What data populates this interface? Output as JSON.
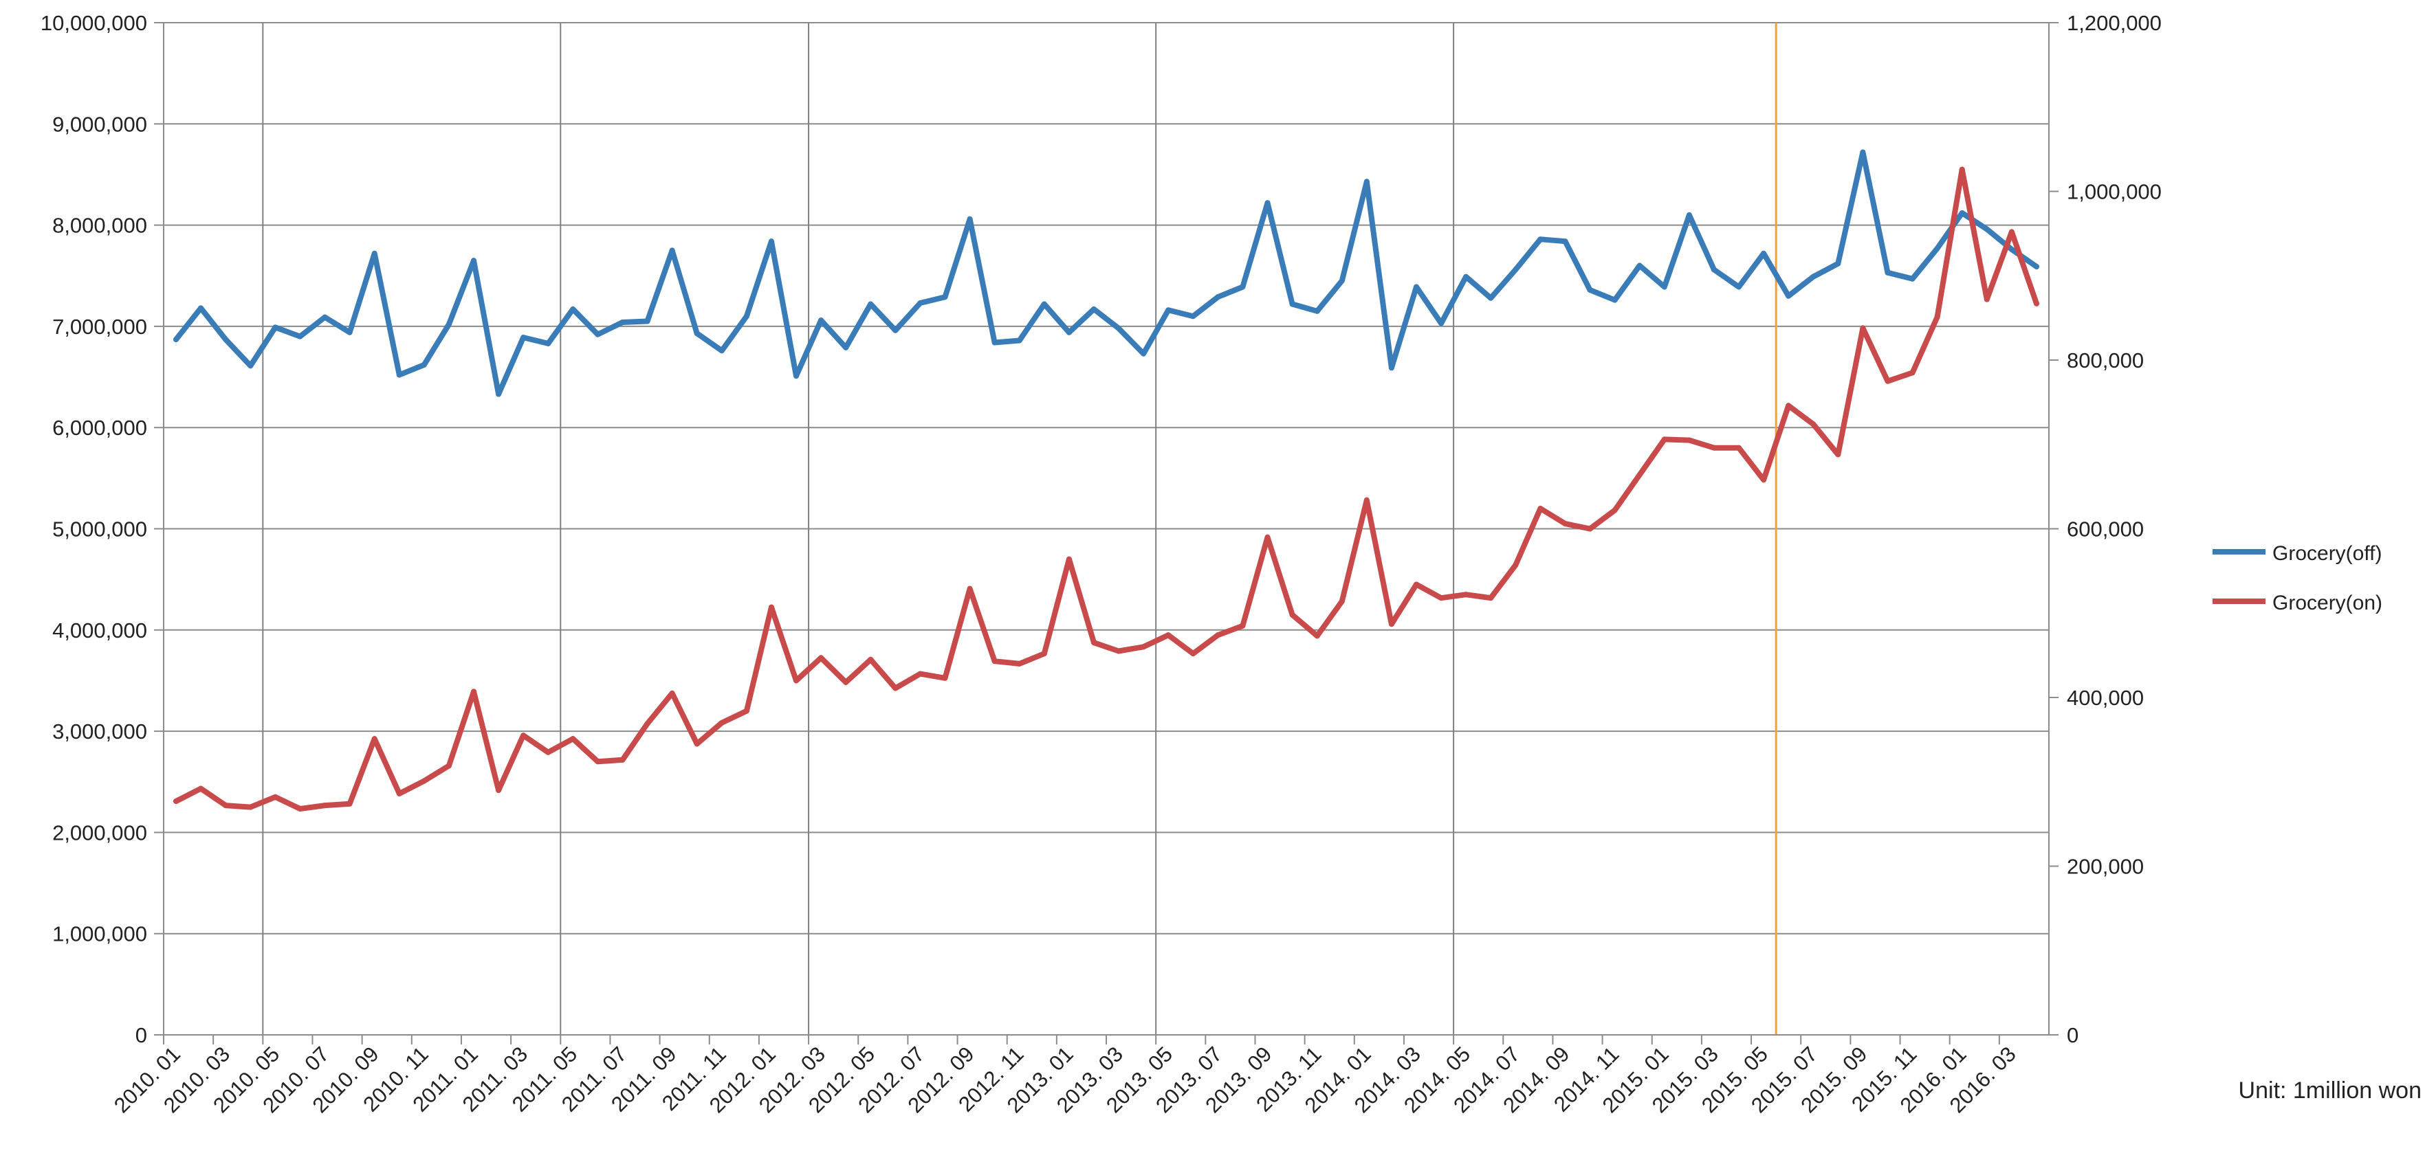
{
  "chart_data": {
    "type": "line",
    "title": "",
    "xlabel": "",
    "ylabel_left": "",
    "ylabel_right": "",
    "unit_note": "Unit: 1million won",
    "x": [
      "2010. 01",
      "2010. 02",
      "2010. 03",
      "2010. 04",
      "2010. 05",
      "2010. 06",
      "2010. 07",
      "2010. 08",
      "2010. 09",
      "2010. 10",
      "2010. 11",
      "2010. 12",
      "2011. 01",
      "2011. 02",
      "2011. 03",
      "2011. 04",
      "2011. 05",
      "2011. 06",
      "2011. 07",
      "2011. 08",
      "2011. 09",
      "2011. 10",
      "2011. 11",
      "2011. 12",
      "2012. 01",
      "2012. 02",
      "2012. 03",
      "2012. 04",
      "2012. 05",
      "2012. 06",
      "2012. 07",
      "2012. 08",
      "2012. 09",
      "2012. 10",
      "2012. 11",
      "2012. 12",
      "2013. 01",
      "2013. 02",
      "2013. 03",
      "2013. 04",
      "2013. 05",
      "2013. 06",
      "2013. 07",
      "2013. 08",
      "2013. 09",
      "2013. 10",
      "2013. 11",
      "2013. 12",
      "2014. 01",
      "2014. 02",
      "2014. 03",
      "2014. 04",
      "2014. 05",
      "2014. 06",
      "2014. 07",
      "2014. 08",
      "2014. 09",
      "2014. 10",
      "2014. 11",
      "2014. 12",
      "2015. 01",
      "2015. 02",
      "2015. 03",
      "2015. 04",
      "2015. 05",
      "2015. 06",
      "2015. 07",
      "2015. 08",
      "2015. 09",
      "2015. 10",
      "2015. 11",
      "2015. 12",
      "2016. 01",
      "2016. 02",
      "2016. 03",
      "2016. 04"
    ],
    "x_tick_labels": [
      "2010. 01",
      "2010. 03",
      "2010. 05",
      "2010. 07",
      "2010. 09",
      "2010. 11",
      "2011. 01",
      "2011. 03",
      "2011. 05",
      "2011. 07",
      "2011. 09",
      "2011. 11",
      "2012. 01",
      "2012. 03",
      "2012. 05",
      "2012. 07",
      "2012. 09",
      "2012. 11",
      "2013. 01",
      "2013. 03",
      "2013. 05",
      "2013. 07",
      "2013. 09",
      "2013. 11",
      "2014. 01",
      "2014. 03",
      "2014. 05",
      "2014. 07",
      "2014. 09",
      "2014. 11",
      "2015. 01",
      "2015. 03",
      "2015. 05",
      "2015. 07",
      "2015. 09",
      "2015. 11",
      "2016. 01",
      "2016. 03"
    ],
    "y_left": {
      "ylim": [
        0,
        10000000
      ],
      "ticks": [
        0,
        1000000,
        2000000,
        3000000,
        4000000,
        5000000,
        6000000,
        7000000,
        8000000,
        9000000,
        10000000
      ],
      "tick_labels": [
        "0",
        "1,000,000",
        "2,000,000",
        "3,000,000",
        "4,000,000",
        "5,000,000",
        "6,000,000",
        "7,000,000",
        "8,000,000",
        "9,000,000",
        "10,000,000"
      ]
    },
    "y_right": {
      "ylim": [
        0,
        1200000
      ],
      "ticks": [
        0,
        200000,
        400000,
        600000,
        800000,
        1000000,
        1200000
      ],
      "tick_labels": [
        "0",
        "200,000",
        "400,000",
        "600,000",
        "800,000",
        "1,000,000",
        "1,200,000"
      ]
    },
    "vertical_gridlines_at": [
      "2010. 05",
      "2011. 05",
      "2012. 03",
      "2013. 05",
      "2014. 05"
    ],
    "highlight_line_at": "2015. 05",
    "grid": true,
    "legend_position": "right",
    "series": [
      {
        "name": "Grocery(off)",
        "axis": "left",
        "color": "#3a7cb8",
        "values": [
          6870000,
          7180000,
          6870000,
          6610000,
          6990000,
          6900000,
          7090000,
          6940000,
          7720000,
          6520000,
          6620000,
          7020000,
          7650000,
          6330000,
          6890000,
          6830000,
          7170000,
          6920000,
          7040000,
          7050000,
          7750000,
          6930000,
          6760000,
          7100000,
          7840000,
          6510000,
          7060000,
          6790000,
          7220000,
          6960000,
          7230000,
          7290000,
          8060000,
          6840000,
          6860000,
          7220000,
          6940000,
          7170000,
          6980000,
          6730000,
          7160000,
          7100000,
          7290000,
          7390000,
          8220000,
          7220000,
          7150000,
          7450000,
          8430000,
          6590000,
          7390000,
          7030000,
          7490000,
          7280000,
          7560000,
          7860000,
          7840000,
          7360000,
          7260000,
          7600000,
          7390000,
          8100000,
          7560000,
          7390000,
          7720000,
          7300000,
          7490000,
          7620000,
          8720000,
          7530000,
          7470000,
          7770000,
          8120000,
          7960000,
          7760000,
          7590000
        ]
      },
      {
        "name": "Grocery(on)",
        "axis": "right",
        "color": "#c94a4a",
        "values": [
          277000,
          292000,
          272000,
          270000,
          282000,
          268000,
          272000,
          274000,
          351000,
          286000,
          301000,
          319000,
          407000,
          290000,
          355000,
          335000,
          351000,
          324000,
          326000,
          369000,
          405000,
          345000,
          370000,
          384000,
          507000,
          420000,
          447000,
          418000,
          445000,
          411000,
          428000,
          423000,
          529000,
          443000,
          440000,
          452000,
          564000,
          465000,
          455000,
          460000,
          474000,
          452000,
          474000,
          485000,
          590000,
          498000,
          473000,
          514000,
          634000,
          487000,
          534000,
          518000,
          522000,
          518000,
          557000,
          624000,
          606000,
          600000,
          622000,
          664000,
          706000,
          705000,
          696000,
          696000,
          658000,
          746000,
          724000,
          688000,
          838000,
          775000,
          785000,
          851000,
          1026000,
          872000,
          952000,
          867000
        ]
      }
    ]
  }
}
